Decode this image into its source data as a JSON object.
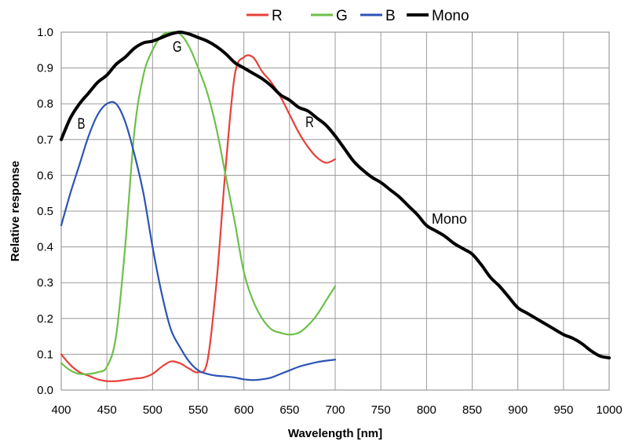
{
  "chart_data": {
    "type": "line",
    "xlabel": "Wavelength [nm]",
    "ylabel": "Relative response",
    "xlim": [
      400,
      1000
    ],
    "ylim": [
      0,
      1.0
    ],
    "grid": true,
    "legend_position": "top",
    "x_ticks": [
      "400",
      "450",
      "500",
      "550",
      "600",
      "650",
      "700",
      "750",
      "800",
      "850",
      "900",
      "950",
      "1000"
    ],
    "y_ticks": [
      "0.0",
      "0.1",
      "0.2",
      "0.3",
      "0.4",
      "0.5",
      "0.6",
      "0.7",
      "0.8",
      "0.9",
      "1.0"
    ],
    "series": [
      {
        "name": "R",
        "color": "#e8403a",
        "x": [
          400,
          410,
          420,
          430,
          440,
          450,
          460,
          470,
          480,
          490,
          500,
          510,
          520,
          530,
          540,
          550,
          560,
          570,
          580,
          590,
          600,
          610,
          620,
          630,
          640,
          650,
          660,
          670,
          680,
          690,
          700
        ],
        "y": [
          0.1,
          0.07,
          0.05,
          0.04,
          0.03,
          0.025,
          0.025,
          0.028,
          0.032,
          0.035,
          0.045,
          0.065,
          0.08,
          0.075,
          0.06,
          0.05,
          0.08,
          0.3,
          0.62,
          0.88,
          0.93,
          0.93,
          0.89,
          0.86,
          0.82,
          0.77,
          0.72,
          0.68,
          0.65,
          0.635,
          0.645
        ]
      },
      {
        "name": "G",
        "color": "#6ec04b",
        "x": [
          400,
          410,
          420,
          430,
          440,
          450,
          460,
          470,
          480,
          490,
          500,
          510,
          520,
          530,
          540,
          550,
          560,
          570,
          580,
          590,
          600,
          610,
          620,
          630,
          640,
          650,
          660,
          670,
          680,
          690,
          700
        ],
        "y": [
          0.075,
          0.055,
          0.045,
          0.045,
          0.05,
          0.065,
          0.15,
          0.4,
          0.72,
          0.88,
          0.95,
          0.99,
          1.0,
          0.995,
          0.96,
          0.9,
          0.83,
          0.73,
          0.6,
          0.47,
          0.33,
          0.25,
          0.2,
          0.17,
          0.16,
          0.155,
          0.16,
          0.18,
          0.21,
          0.25,
          0.29
        ]
      },
      {
        "name": "B",
        "color": "#2c54b5",
        "x": [
          400,
          410,
          420,
          430,
          440,
          450,
          460,
          470,
          480,
          490,
          500,
          510,
          520,
          530,
          540,
          550,
          560,
          570,
          580,
          590,
          600,
          610,
          620,
          630,
          640,
          650,
          660,
          670,
          680,
          690,
          700
        ],
        "y": [
          0.46,
          0.55,
          0.63,
          0.71,
          0.77,
          0.8,
          0.8,
          0.75,
          0.66,
          0.55,
          0.4,
          0.27,
          0.17,
          0.12,
          0.08,
          0.055,
          0.045,
          0.04,
          0.038,
          0.035,
          0.03,
          0.028,
          0.03,
          0.035,
          0.045,
          0.055,
          0.065,
          0.072,
          0.078,
          0.082,
          0.085
        ]
      },
      {
        "name": "Mono",
        "color": "#000000",
        "x": [
          400,
          410,
          420,
          430,
          440,
          450,
          460,
          470,
          480,
          490,
          500,
          510,
          520,
          530,
          540,
          550,
          560,
          570,
          580,
          590,
          600,
          610,
          620,
          630,
          640,
          650,
          660,
          670,
          680,
          690,
          700,
          710,
          720,
          730,
          740,
          750,
          760,
          770,
          780,
          790,
          800,
          810,
          820,
          830,
          840,
          850,
          860,
          870,
          880,
          890,
          900,
          910,
          920,
          930,
          940,
          950,
          960,
          970,
          980,
          990,
          1000
        ],
        "y": [
          0.7,
          0.76,
          0.8,
          0.83,
          0.86,
          0.88,
          0.91,
          0.93,
          0.955,
          0.97,
          0.975,
          0.985,
          0.995,
          1.0,
          0.995,
          0.985,
          0.975,
          0.96,
          0.94,
          0.915,
          0.9,
          0.885,
          0.87,
          0.85,
          0.825,
          0.81,
          0.79,
          0.78,
          0.76,
          0.74,
          0.71,
          0.675,
          0.64,
          0.615,
          0.595,
          0.58,
          0.56,
          0.54,
          0.515,
          0.49,
          0.46,
          0.445,
          0.43,
          0.41,
          0.395,
          0.38,
          0.35,
          0.315,
          0.29,
          0.26,
          0.23,
          0.215,
          0.2,
          0.185,
          0.17,
          0.155,
          0.145,
          0.13,
          0.11,
          0.095,
          0.09
        ]
      }
    ],
    "annotations": [
      {
        "text": "G",
        "x": 527,
        "y": 0.945
      },
      {
        "text": "B",
        "x": 422,
        "y": 0.73
      },
      {
        "text": "R",
        "x": 672,
        "y": 0.735
      },
      {
        "text": "Mono",
        "x": 825,
        "y": 0.465
      }
    ]
  }
}
